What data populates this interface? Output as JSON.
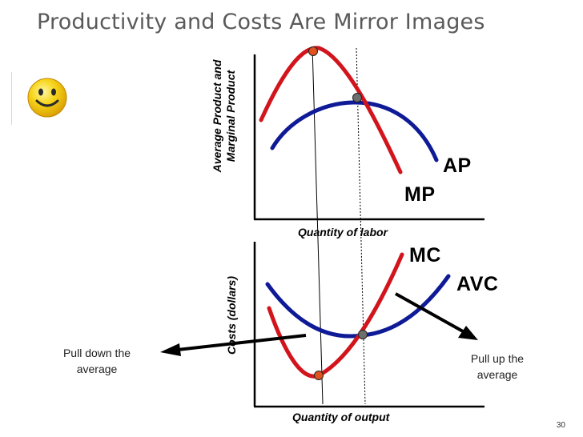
{
  "slide": {
    "title": "Productivity and Costs Are Mirror Images",
    "page_number": "30"
  },
  "top_graph": {
    "ylabel_line1": "Average Product and",
    "ylabel_line2": "Marginal Product",
    "xlabel": "Quantity of labor",
    "curves": {
      "ap": "AP",
      "mp": "MP"
    }
  },
  "bottom_graph": {
    "ylabel": "Costs (dollars)",
    "xlabel": "Quantity of output",
    "curves": {
      "mc": "MC",
      "avc": "AVC"
    }
  },
  "annotations": {
    "pull_down": {
      "line1": "Pull down the",
      "line2": "average"
    },
    "pull_up": {
      "line1": "Pull up the",
      "line2": "average"
    }
  },
  "colors": {
    "mp_mc": "#d2141c",
    "ap_avc": "#0f1a96",
    "marker_red": "#e0521e",
    "marker_gray": "#6e6e6e",
    "title": "#5a5a5a"
  },
  "icons": [
    "smiley-face-icon"
  ]
}
